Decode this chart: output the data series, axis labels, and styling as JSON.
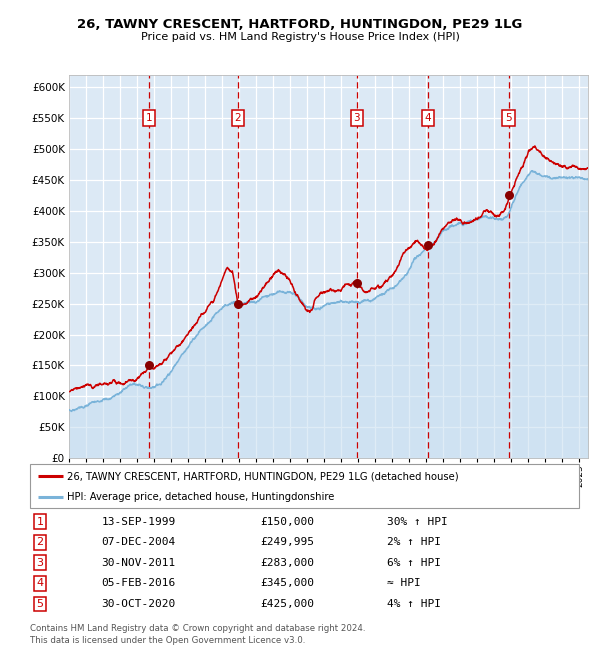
{
  "title1": "26, TAWNY CRESCENT, HARTFORD, HUNTINGDON, PE29 1LG",
  "title2": "Price paid vs. HM Land Registry's House Price Index (HPI)",
  "bg_color": "#dce9f5",
  "hpi_color": "#7ab3d9",
  "price_color": "#cc0000",
  "sale_marker_color": "#880000",
  "vline_color": "#cc0000",
  "ylim": [
    0,
    620000
  ],
  "yticks": [
    0,
    50000,
    100000,
    150000,
    200000,
    250000,
    300000,
    350000,
    400000,
    450000,
    500000,
    550000,
    600000
  ],
  "sales": [
    {
      "num": 1,
      "date_x": 1999.71,
      "price": 150000,
      "label": "13-SEP-1999",
      "price_label": "£150,000",
      "hpi_rel": "30% ↑ HPI"
    },
    {
      "num": 2,
      "date_x": 2004.92,
      "price": 249995,
      "label": "07-DEC-2004",
      "price_label": "£249,995",
      "hpi_rel": "2% ↑ HPI"
    },
    {
      "num": 3,
      "date_x": 2011.92,
      "price": 283000,
      "label": "30-NOV-2011",
      "price_label": "£283,000",
      "hpi_rel": "6% ↑ HPI"
    },
    {
      "num": 4,
      "date_x": 2016.09,
      "price": 345000,
      "label": "05-FEB-2016",
      "price_label": "£345,000",
      "hpi_rel": "≈ HPI"
    },
    {
      "num": 5,
      "date_x": 2020.83,
      "price": 425000,
      "label": "30-OCT-2020",
      "price_label": "£425,000",
      "hpi_rel": "4% ↑ HPI"
    }
  ],
  "legend1_label": "26, TAWNY CRESCENT, HARTFORD, HUNTINGDON, PE29 1LG (detached house)",
  "legend2_label": "HPI: Average price, detached house, Huntingdonshire",
  "footer": "Contains HM Land Registry data © Crown copyright and database right 2024.\nThis data is licensed under the Open Government Licence v3.0.",
  "xmin": 1995.0,
  "xmax": 2025.5
}
